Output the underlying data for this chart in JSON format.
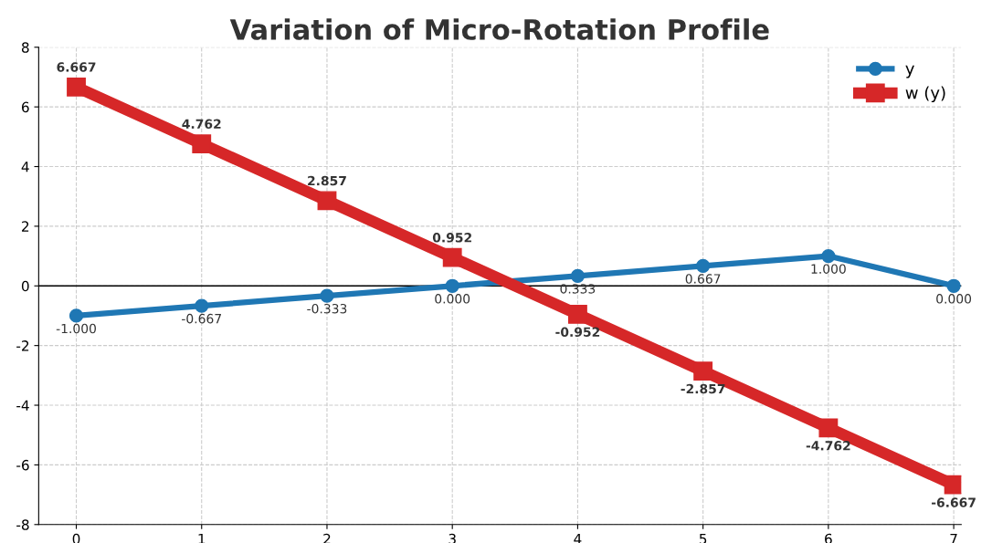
{
  "chart_data": {
    "type": "line",
    "title": "Variation of Micro-Rotation Profile",
    "x": [
      0,
      1,
      2,
      3,
      4,
      5,
      6,
      7
    ],
    "series": [
      {
        "name": "y",
        "color": "#1f77b4",
        "marker": "circle",
        "values": [
          -1.0,
          -0.667,
          -0.333,
          0.0,
          0.333,
          0.667,
          1.0,
          0.0
        ],
        "value_labels": [
          "-1.000",
          "-0.667",
          "-0.333",
          "0.000",
          "0.333",
          "0.667",
          "1.000",
          "0.000"
        ]
      },
      {
        "name": "w (y)",
        "color": "#d62728",
        "marker": "square",
        "values": [
          6.667,
          4.762,
          2.857,
          0.952,
          -0.952,
          -2.857,
          -4.762,
          -6.667
        ],
        "value_labels": [
          "6.667",
          "4.762",
          "2.857",
          "0.952",
          "-0.952",
          "-2.857",
          "-4.762",
          "-6.667"
        ]
      }
    ],
    "xlim": [
      -0.3,
      7.06
    ],
    "xticks": [
      0,
      1,
      2,
      3,
      4,
      5,
      6,
      7
    ],
    "ylim": [
      -8,
      8
    ],
    "yticks": [
      -8,
      -6,
      -4,
      -2,
      0,
      2,
      4,
      6,
      8
    ],
    "ref_lines": [
      {
        "axis": "y",
        "value": 0,
        "color": "#000000"
      }
    ],
    "grid": true,
    "legend": "top right"
  }
}
